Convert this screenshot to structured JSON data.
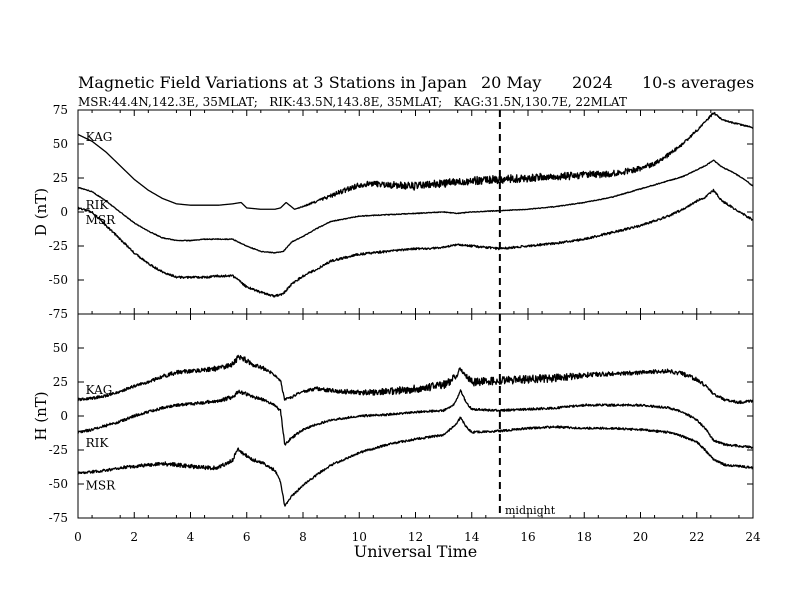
{
  "chart_data": {
    "type": "line",
    "title_parts": [
      "Magnetic Field Variations at 3 Stations in Japan",
      "20 May",
      "2024",
      "10-s averages"
    ],
    "subtitle": "MSR:44.4N,142.3E, 35MLAT;   RIK:43.5N,143.8E, 35MLAT;   KAG:31.5N,130.7E, 22MLAT",
    "xlabel": "Universal Time",
    "xlim": [
      0,
      24
    ],
    "xticks": [
      0,
      2,
      4,
      6,
      8,
      10,
      12,
      14,
      16,
      18,
      20,
      22,
      24
    ],
    "grid": false,
    "annotation": {
      "label": "midnight",
      "x": 15
    },
    "panels": [
      {
        "id": "D",
        "ylabel": "D (nT)",
        "ylim": [
          -75,
          75
        ],
        "yticks": [
          75,
          50,
          25,
          0,
          -25,
          -50,
          -75
        ],
        "series": [
          {
            "name": "KAG",
            "label_at": [
              0.2,
              55
            ],
            "x": [
              0,
              0.5,
              1,
              1.5,
              2,
              2.5,
              3,
              3.5,
              4,
              4.5,
              5,
              5.5,
              5.8,
              6,
              6.5,
              7,
              7.2,
              7.4,
              7.7,
              8,
              8.5,
              9,
              9.5,
              10,
              10.5,
              11,
              12,
              13,
              14,
              15,
              16,
              17,
              18,
              19,
              20,
              20.5,
              21,
              21.5,
              22,
              22.3,
              22.6,
              22.9,
              23.2,
              23.6,
              24
            ],
            "y": [
              57,
              52,
              44,
              34,
              24,
              16,
              10,
              6,
              5,
              5,
              5,
              6,
              7,
              3,
              2,
              2,
              3,
              7,
              2,
              4,
              8,
              12,
              16,
              20,
              21,
              20,
              19,
              21,
              23,
              24,
              25,
              26,
              27,
              28,
              32,
              36,
              42,
              50,
              60,
              66,
              73,
              68,
              66,
              64,
              62
            ],
            "noise": [
              0,
              0,
              0,
              0,
              0,
              0,
              0,
              0,
              0,
              0,
              0,
              0,
              0,
              0,
              0,
              0,
              0,
              0,
              0,
              0.5,
              1,
              1.5,
              2,
              2,
              2,
              2.5,
              3,
              3,
              3,
              3,
              3,
              3,
              3,
              2.5,
              2,
              2,
              1.5,
              1,
              1,
              1,
              1,
              0.5,
              0.5,
              0.5,
              0.5
            ]
          },
          {
            "name": "RIK",
            "label_at": [
              0.2,
              5
            ],
            "x": [
              0,
              0.5,
              1,
              1.5,
              2,
              2.5,
              3,
              3.5,
              4,
              4.5,
              5,
              5.5,
              6,
              6.5,
              7,
              7.3,
              7.6,
              8,
              8.5,
              9,
              10,
              11,
              12,
              13,
              13.5,
              14,
              15,
              16,
              17,
              18,
              19,
              20,
              21,
              21.5,
              22,
              22.3,
              22.6,
              22.9,
              23.3,
              23.7,
              24
            ],
            "y": [
              18,
              15,
              8,
              0,
              -8,
              -14,
              -19,
              -21,
              -21,
              -20,
              -20,
              -20,
              -25,
              -29,
              -30,
              -29,
              -22,
              -18,
              -12,
              -7,
              -3,
              -2,
              -1,
              0,
              -1,
              0,
              1,
              2,
              4,
              7,
              11,
              17,
              23,
              26,
              31,
              34,
              38,
              33,
              29,
              24,
              19
            ],
            "noise": [
              0.3,
              0.3,
              0.3,
              0.3,
              0.3,
              0.3,
              0.3,
              0.3,
              0.3,
              0.3,
              0.3,
              0.3,
              0.3,
              0.3,
              0.3,
              0.3,
              0.3,
              0.3,
              0.3,
              0.3,
              0.3,
              0.3,
              0.3,
              0.3,
              0.3,
              0.3,
              0.3,
              0.3,
              0.3,
              0.3,
              0.3,
              0.3,
              0.3,
              0.3,
              0.3,
              0.3,
              0.3,
              0.3,
              0.3,
              0.3,
              0.3
            ]
          },
          {
            "name": "MSR",
            "label_at": [
              0.2,
              -6
            ],
            "x": [
              0,
              0.5,
              1,
              1.5,
              2,
              2.5,
              3,
              3.5,
              4,
              4.5,
              5,
              5.5,
              6,
              6.5,
              7,
              7.3,
              7.6,
              8,
              8.5,
              9,
              10,
              11,
              12,
              12.5,
              13,
              13.5,
              14,
              14.5,
              15,
              16,
              17,
              18,
              19,
              20,
              21,
              21.5,
              22,
              22.3,
              22.6,
              22.9,
              23.3,
              23.7,
              24
            ],
            "y": [
              3,
              0,
              -10,
              -20,
              -30,
              -38,
              -44,
              -48,
              -48,
              -48,
              -47,
              -47,
              -55,
              -59,
              -62,
              -60,
              -53,
              -47,
              -42,
              -36,
              -31,
              -29,
              -27,
              -27,
              -26,
              -24,
              -25,
              -26,
              -27,
              -25,
              -23,
              -20,
              -15,
              -10,
              -3,
              2,
              8,
              11,
              16,
              8,
              3,
              -2,
              -6
            ],
            "noise": [
              0.8,
              0.8,
              0.8,
              0.8,
              0.8,
              0.8,
              0.8,
              0.8,
              0.8,
              0.8,
              0.8,
              0.8,
              0.8,
              0.8,
              0.8,
              0.8,
              0.8,
              0.8,
              0.8,
              0.8,
              0.8,
              0.8,
              0.8,
              0.8,
              0.8,
              0.8,
              0.8,
              0.8,
              0.8,
              0.8,
              0.8,
              0.8,
              0.8,
              0.8,
              0.8,
              0.8,
              0.8,
              0.8,
              0.8,
              0.8,
              0.8,
              0.8,
              0.8
            ]
          }
        ]
      },
      {
        "id": "H",
        "ylabel": "H (nT)",
        "ylim": [
          -75,
          75
        ],
        "yticks": [
          50,
          25,
          0,
          -25,
          -50,
          -75
        ],
        "series": [
          {
            "name": "KAG",
            "label_at": [
              0.2,
              19
            ],
            "x": [
              0,
              0.5,
              1,
              1.5,
              2,
              2.5,
              3,
              3.5,
              4,
              4.5,
              5,
              5.5,
              5.7,
              5.9,
              6.2,
              6.6,
              7,
              7.2,
              7.35,
              7.6,
              8,
              8.5,
              9,
              10,
              11,
              12,
              13,
              13.4,
              13.6,
              13.8,
              14,
              15,
              16,
              17,
              18,
              19,
              20,
              21,
              21.5,
              22,
              22.3,
              22.6,
              23,
              23.5,
              24
            ],
            "y": [
              12,
              13,
              15,
              18,
              22,
              25,
              29,
              32,
              33,
              34,
              35,
              38,
              43,
              42,
              38,
              35,
              30,
              26,
              12,
              14,
              18,
              20,
              19,
              17,
              18,
              20,
              23,
              28,
              35,
              30,
              25,
              26,
              27,
              28,
              30,
              31,
              32,
              33,
              31,
              27,
              22,
              16,
              12,
              10,
              11
            ],
            "noise": [
              1,
              1,
              1,
              1,
              1,
              1,
              1.5,
              1.5,
              1.5,
              1.5,
              2,
              2,
              2,
              2,
              1.5,
              1.5,
              1,
              1,
              1,
              1,
              1,
              1.5,
              1.5,
              2,
              2.5,
              3,
              3,
              3,
              2,
              2,
              3,
              3,
              3,
              3,
              2,
              1.5,
              1.5,
              1.5,
              1.5,
              1.5,
              1.5,
              1,
              1,
              1,
              1
            ]
          },
          {
            "name": "RIK",
            "label_at": [
              0.2,
              -20
            ],
            "x": [
              0,
              0.5,
              1,
              1.5,
              2,
              2.5,
              3,
              3.5,
              4,
              4.5,
              5,
              5.5,
              5.7,
              5.9,
              6.2,
              6.6,
              7,
              7.2,
              7.35,
              7.6,
              8,
              8.5,
              9,
              10,
              11,
              12,
              13,
              13.4,
              13.6,
              13.8,
              14,
              15,
              16,
              17,
              18,
              19,
              20,
              21,
              21.5,
              22,
              22.3,
              22.6,
              23,
              23.5,
              24
            ],
            "y": [
              -12,
              -10,
              -7,
              -4,
              0,
              3,
              6,
              8,
              9,
              10,
              11,
              14,
              18,
              17,
              14,
              12,
              8,
              4,
              -21,
              -16,
              -10,
              -6,
              -3,
              0,
              1,
              3,
              4,
              9,
              19,
              10,
              5,
              4,
              5,
              6,
              8,
              8,
              8,
              6,
              3,
              -3,
              -9,
              -18,
              -21,
              -22,
              -23
            ],
            "noise": [
              1,
              1,
              1,
              1,
              1,
              1,
              1,
              1,
              1.2,
              1.2,
              1.5,
              1.5,
              1.5,
              1.5,
              1.2,
              1.2,
              1,
              1,
              1,
              1,
              0.8,
              0.8,
              0.8,
              0.8,
              0.8,
              0.8,
              0.8,
              0.8,
              0.8,
              0.8,
              0.8,
              0.8,
              0.8,
              0.8,
              0.8,
              0.8,
              0.8,
              0.8,
              0.8,
              0.8,
              0.8,
              0.8,
              0.8,
              0.8,
              0.8
            ]
          },
          {
            "name": "MSR",
            "label_at": [
              0.2,
              -51
            ],
            "x": [
              0,
              0.5,
              1,
              1.5,
              2,
              2.5,
              3,
              3.5,
              4,
              4.5,
              5,
              5.5,
              5.7,
              5.9,
              6.2,
              6.6,
              7,
              7.2,
              7.35,
              7.6,
              8,
              8.5,
              9,
              10,
              11,
              12,
              13,
              13.4,
              13.6,
              13.8,
              14,
              15,
              16,
              17,
              18,
              19,
              20,
              21,
              21.5,
              22,
              22.3,
              22.6,
              23,
              23.5,
              24
            ],
            "y": [
              -42,
              -41,
              -40,
              -38,
              -37,
              -36,
              -35,
              -36,
              -37,
              -38,
              -38,
              -32,
              -24,
              -28,
              -32,
              -35,
              -40,
              -48,
              -66,
              -59,
              -51,
              -43,
              -36,
              -27,
              -21,
              -17,
              -14,
              -7,
              -1,
              -8,
              -12,
              -11,
              -9,
              -8,
              -9,
              -9,
              -10,
              -12,
              -15,
              -19,
              -25,
              -32,
              -36,
              -37,
              -38
            ],
            "noise": [
              1,
              1,
              1,
              1,
              1.2,
              1.2,
              1.5,
              1.5,
              1.5,
              1.5,
              1.5,
              1.5,
              1.5,
              1.5,
              1.2,
              1.2,
              1,
              1,
              1,
              0.8,
              0.8,
              0.8,
              0.8,
              0.8,
              0.8,
              0.8,
              0.8,
              0.8,
              0.8,
              0.8,
              0.8,
              0.8,
              0.8,
              0.8,
              0.8,
              0.8,
              0.8,
              0.8,
              0.8,
              0.8,
              0.8,
              0.8,
              0.8,
              0.8,
              0.8
            ]
          }
        ]
      }
    ]
  }
}
